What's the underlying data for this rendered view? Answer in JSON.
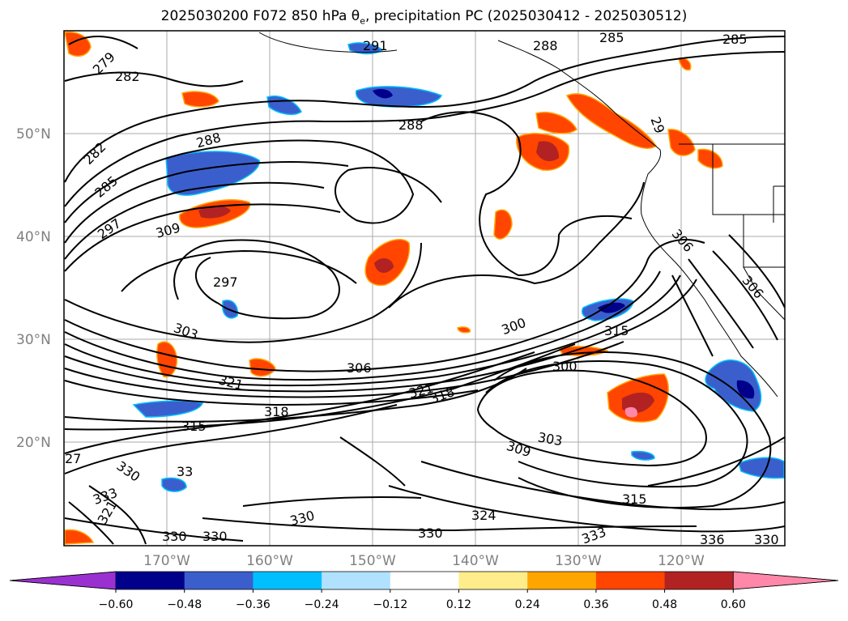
{
  "title": "2025030200 F072 850 hPa θe, precipitation PC (2025030412 - 2025030512)",
  "map": {
    "lat_labels": [
      "50°N",
      "40°N",
      "30°N",
      "20°N"
    ],
    "lon_labels": [
      "170°W",
      "160°W",
      "150°W",
      "140°W",
      "130°W",
      "120°W"
    ],
    "contour_labels": [
      "291",
      "288",
      "285",
      "279",
      "282",
      "288",
      "29",
      "282",
      "285",
      "297",
      "309",
      "297",
      "306",
      "303",
      "300",
      "315",
      "306",
      "306",
      "300",
      "321",
      "321",
      "318",
      "318",
      "315",
      "303",
      "309",
      "27",
      "330",
      "33",
      "333",
      "321",
      "330",
      "315",
      "324",
      "330",
      "330",
      "330",
      "333",
      "336",
      "330"
    ]
  },
  "colorbar": {
    "ticks": [
      "−0.60",
      "−0.48",
      "−0.36",
      "−0.24",
      "−0.12",
      "0.12",
      "0.24",
      "0.36",
      "0.48",
      "0.60"
    ],
    "colors": [
      "#9b30d0",
      "#00008b",
      "#3a5fcd",
      "#00bfff",
      "#b0e2ff",
      "#ffffff",
      "#ffec8b",
      "#ffa500",
      "#ff4500",
      "#b22222",
      "#ff88aa"
    ]
  }
}
